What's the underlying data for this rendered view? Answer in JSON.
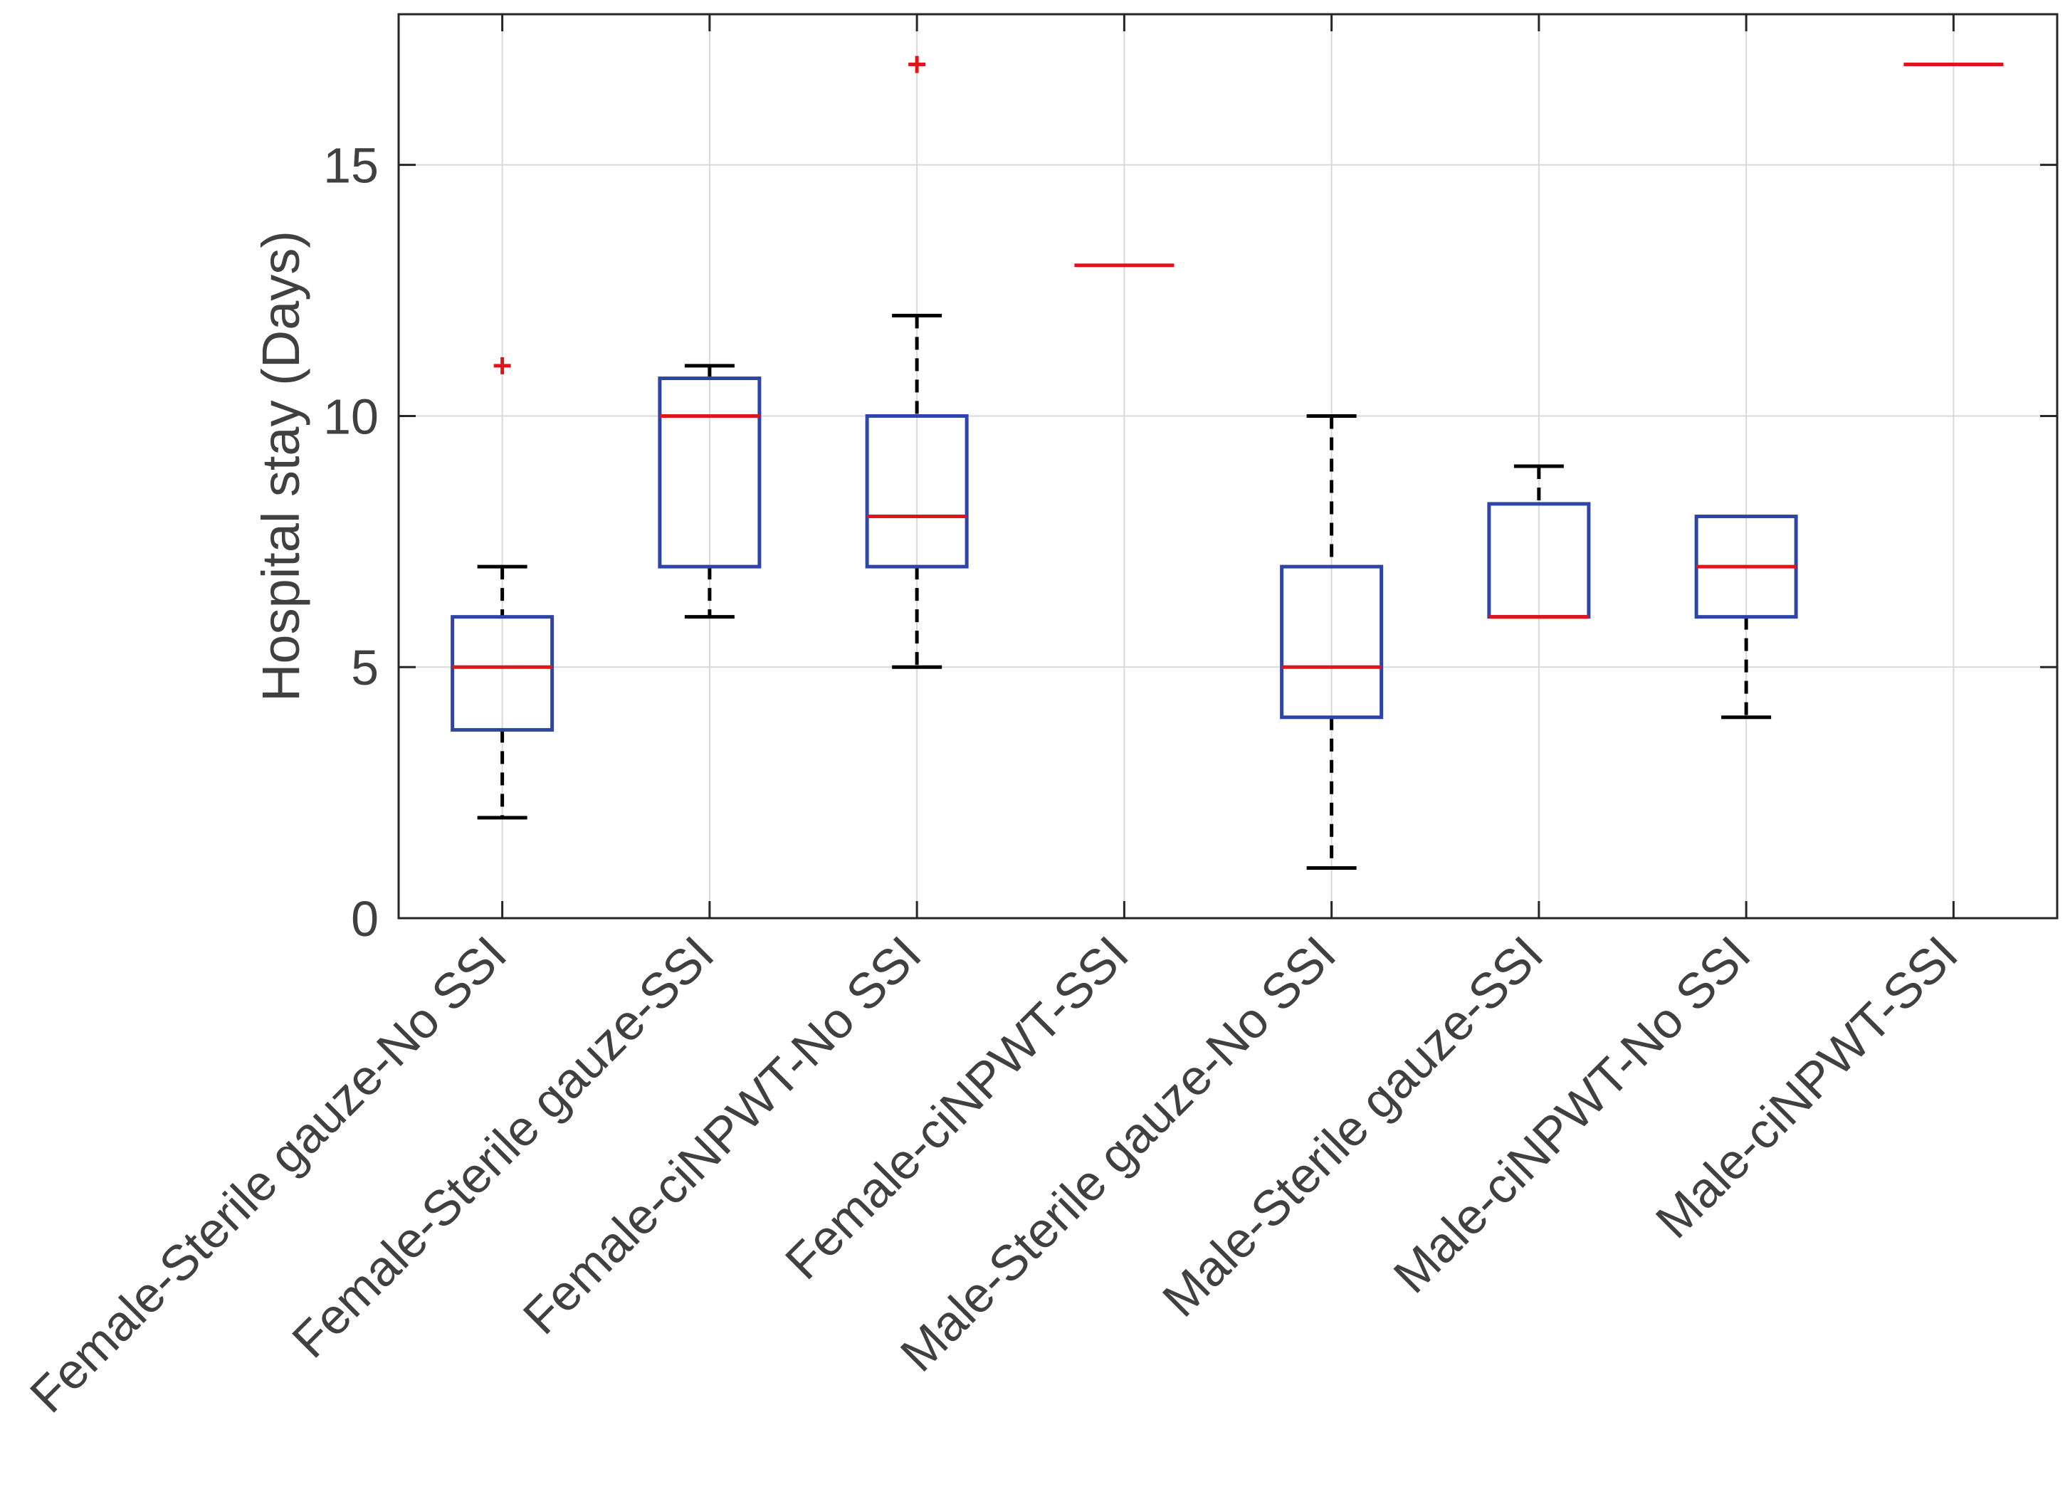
{
  "chart_data": {
    "type": "box",
    "title": "",
    "xlabel": "",
    "ylabel": "Hospital stay (Days)",
    "ylim": [
      0,
      18
    ],
    "yticks": [
      0,
      5,
      10,
      15
    ],
    "grid": true,
    "categories": [
      "Female-Sterile gauze-No SSI",
      "Female-Sterile gauze-SSI",
      "Female-ciNPWT-No SSI",
      "Female-ciNPWT-SSI",
      "Male-Sterile gauze-No SSI",
      "Male-Sterile gauze-SSI",
      "Male-ciNPWT-No SSI",
      "Male-ciNPWT-SSI"
    ],
    "boxes": [
      {
        "whisker_low": 2,
        "q1": 3.75,
        "median": 5,
        "q3": 6,
        "whisker_high": 7,
        "outliers": [
          11
        ]
      },
      {
        "whisker_low": 6,
        "q1": 7,
        "median": 10,
        "q3": 10.75,
        "whisker_high": 11,
        "outliers": []
      },
      {
        "whisker_low": 5,
        "q1": 7,
        "median": 8,
        "q3": 10,
        "whisker_high": 12,
        "outliers": [
          17
        ]
      },
      {
        "whisker_low": 13,
        "q1": 13,
        "median": 13,
        "q3": 13,
        "whisker_high": 13,
        "outliers": []
      },
      {
        "whisker_low": 1,
        "q1": 4,
        "median": 5,
        "q3": 7,
        "whisker_high": 10,
        "outliers": []
      },
      {
        "whisker_low": 6,
        "q1": 6,
        "median": 6,
        "q3": 8.25,
        "whisker_high": 9,
        "outliers": []
      },
      {
        "whisker_low": 4,
        "q1": 6,
        "median": 7,
        "q3": 8,
        "whisker_high": 8,
        "outliers": []
      },
      {
        "whisker_low": 17,
        "q1": 17,
        "median": 17,
        "q3": 17,
        "whisker_high": 17,
        "outliers": []
      }
    ],
    "colors": {
      "box": "#2E45A8",
      "median": "#E0151B",
      "whisker": "#000000",
      "outlier": "#E0151B",
      "grid": "#D9D9D9",
      "axis": "#262626",
      "text": "#404040"
    }
  }
}
